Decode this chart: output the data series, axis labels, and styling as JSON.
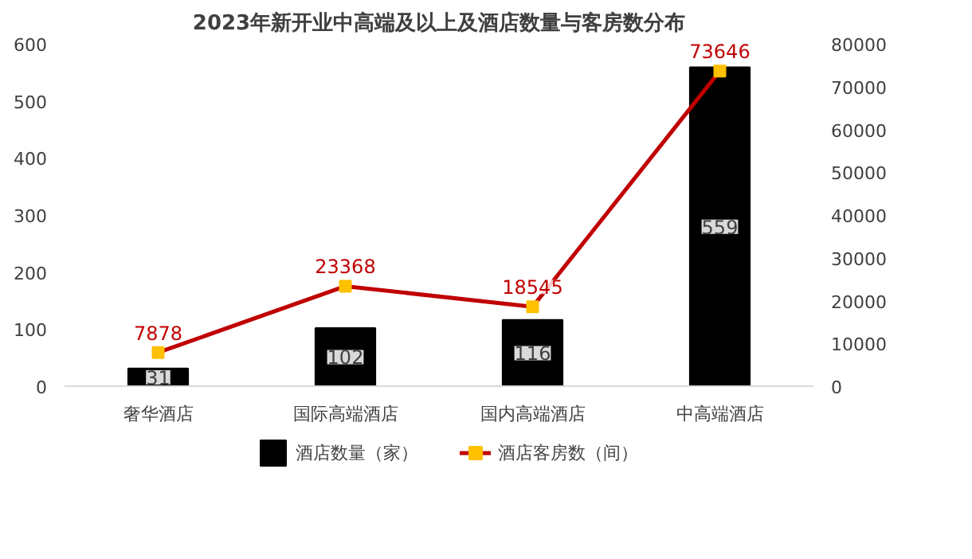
{
  "chart_data": {
    "type": "bar",
    "title": "2023年新开业中高端及以上及酒店数量与客房数分布",
    "categories": [
      "奢华酒店",
      "国际高端酒店",
      "国内高端酒店",
      "中高端酒店"
    ],
    "series": [
      {
        "name": "酒店数量（家）",
        "color": "#000000",
        "values": [
          31,
          102,
          116,
          559
        ]
      },
      {
        "name": "酒店客房数（间）",
        "type": "line",
        "axis": "y2",
        "color": "#c00000",
        "marker": "square",
        "values": [
          7878,
          23368,
          18545,
          73646
        ]
      }
    ],
    "ylim": [
      0,
      600
    ],
    "yticks": [
      0,
      100,
      200,
      300,
      400,
      500,
      600
    ],
    "y2lim": [
      0,
      80000
    ],
    "y2ticks": [
      0,
      10000,
      20000,
      30000,
      40000,
      50000,
      60000,
      70000,
      80000
    ],
    "data_labels": true,
    "legend": "bottom",
    "grid": false
  }
}
